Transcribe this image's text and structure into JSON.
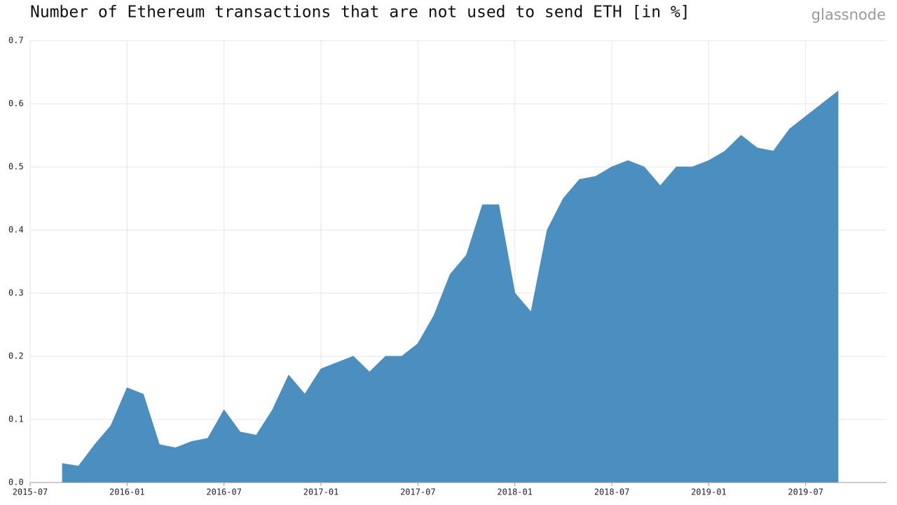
{
  "chart_data": {
    "type": "area",
    "title": "Number of Ethereum transactions that are not used to send ETH [in %]",
    "brand": "glassnode",
    "color": "#4a8fc0",
    "grid": true,
    "x": [
      "2015-09",
      "2015-10",
      "2015-11",
      "2015-12",
      "2016-01",
      "2016-02",
      "2016-03",
      "2016-04",
      "2016-05",
      "2016-06",
      "2016-07",
      "2016-08",
      "2016-09",
      "2016-10",
      "2016-11",
      "2016-12",
      "2017-01",
      "2017-02",
      "2017-03",
      "2017-04",
      "2017-05",
      "2017-06",
      "2017-07",
      "2017-08",
      "2017-09",
      "2017-10",
      "2017-11",
      "2017-12",
      "2018-01",
      "2018-02",
      "2018-03",
      "2018-04",
      "2018-05",
      "2018-06",
      "2018-07",
      "2018-08",
      "2018-09",
      "2018-10",
      "2018-11",
      "2018-12",
      "2019-01",
      "2019-02",
      "2019-03",
      "2019-04",
      "2019-05",
      "2019-06",
      "2019-07",
      "2019-08",
      "2019-09"
    ],
    "values": [
      0.03,
      0.026,
      0.06,
      0.09,
      0.15,
      0.14,
      0.06,
      0.055,
      0.065,
      0.07,
      0.115,
      0.08,
      0.075,
      0.115,
      0.17,
      0.14,
      0.18,
      0.19,
      0.2,
      0.175,
      0.2,
      0.2,
      0.22,
      0.265,
      0.33,
      0.36,
      0.44,
      0.44,
      0.3,
      0.27,
      0.4,
      0.45,
      0.48,
      0.485,
      0.5,
      0.51,
      0.5,
      0.47,
      0.5,
      0.5,
      0.51,
      0.525,
      0.55,
      0.53,
      0.525,
      0.56,
      0.58,
      0.6,
      0.62
    ],
    "xlim": [
      "2015-07",
      "2019-12"
    ],
    "xticks": [
      "2015-07",
      "2016-01",
      "2016-07",
      "2017-01",
      "2017-07",
      "2018-01",
      "2018-07",
      "2019-01",
      "2019-07"
    ],
    "ylim": [
      0,
      0.7
    ],
    "yticks": [
      {
        "value": 0,
        "label": "0.0"
      },
      0.1,
      0.2,
      0.3,
      0.4,
      0.5,
      0.6,
      0.7
    ]
  }
}
